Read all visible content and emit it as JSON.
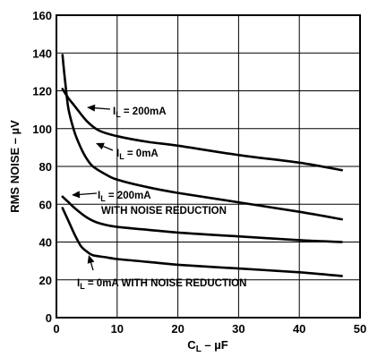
{
  "chart_data": {
    "type": "line",
    "title": "",
    "xlabel": {
      "base": "C",
      "sub": "L",
      "rest": " – µF"
    },
    "ylabel": "RMS NOISE – µV",
    "xlim": [
      0,
      50
    ],
    "ylim": [
      0,
      160
    ],
    "xticks": [
      0,
      10,
      20,
      30,
      40,
      50
    ],
    "yticks": [
      0,
      20,
      40,
      60,
      80,
      100,
      120,
      140,
      160
    ],
    "grid": true,
    "series": [
      {
        "label": {
          "pre": "I",
          "sub": "L",
          "post": " = 200mA",
          "line2": ""
        },
        "x": [
          1,
          2,
          3,
          5,
          7,
          10,
          15,
          20,
          30,
          40,
          47
        ],
        "y": [
          121,
          116,
          112,
          104,
          99,
          96,
          93,
          91,
          86,
          82,
          78
        ]
      },
      {
        "label": {
          "pre": "I",
          "sub": "L",
          "post": " = 0mA",
          "line2": ""
        },
        "x": [
          1,
          1.5,
          2,
          3,
          4,
          5,
          6,
          8,
          10,
          15,
          20,
          30,
          40,
          47
        ],
        "y": [
          139,
          123,
          110,
          98,
          90,
          84,
          80,
          76,
          73,
          69,
          66,
          61,
          56,
          52
        ]
      },
      {
        "label": {
          "pre": "I",
          "sub": "L",
          "post": " = 200mA",
          "line2": "WITH NOISE REDUCTION"
        },
        "x": [
          1,
          2,
          3,
          5,
          7,
          10,
          15,
          20,
          30,
          40,
          47
        ],
        "y": [
          64,
          61,
          58,
          53,
          50,
          48,
          46.5,
          45,
          43,
          41,
          40
        ]
      },
      {
        "label": {
          "pre": "I",
          "sub": "L",
          "post": " = 0mA WITH NOISE REDUCTION",
          "line2": ""
        },
        "x": [
          1,
          2,
          3,
          4,
          5,
          6,
          8,
          10,
          15,
          20,
          30,
          40,
          47
        ],
        "y": [
          58,
          51,
          44,
          38,
          35,
          33,
          32,
          31,
          29.5,
          28,
          26,
          24,
          22
        ]
      }
    ]
  }
}
